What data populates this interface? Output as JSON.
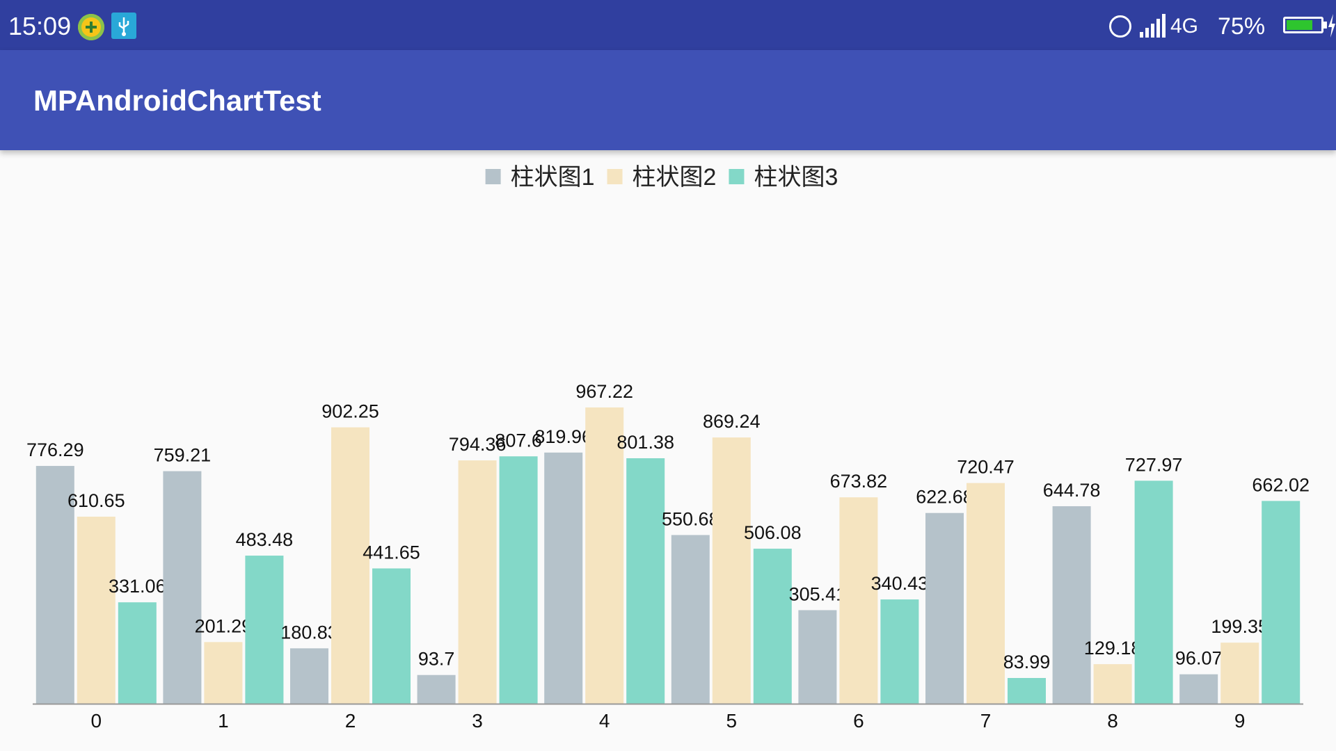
{
  "status_bar": {
    "time": "15:09",
    "network": "4G",
    "battery": "75%",
    "battery_level": 0.75,
    "icons": [
      "plus-icon",
      "usb-icon",
      "alarm-icon",
      "signal-icon",
      "battery-icon",
      "charging-icon"
    ]
  },
  "app_bar": {
    "title": "MPAndroidChartTest"
  },
  "colors": {
    "status_bar": "#303f9f",
    "app_bar": "#3f51b5",
    "background": "#fafafa"
  },
  "chart_data": {
    "type": "bar",
    "categories": [
      "0",
      "1",
      "2",
      "3",
      "4",
      "5",
      "6",
      "7",
      "8",
      "9"
    ],
    "legend_position": "top-center",
    "grid": false,
    "ylim": [
      0,
      1000
    ],
    "series": [
      {
        "name": "柱状图1",
        "color": "#b5c2ca",
        "values": [
          776.29,
          759.21,
          180.83,
          93.7,
          819.96,
          550.68,
          305.41,
          622.68,
          644.78,
          96.07
        ]
      },
      {
        "name": "柱状图2",
        "color": "#f5e4c0",
        "values": [
          610.65,
          201.29,
          902.25,
          794.36,
          967.22,
          869.24,
          673.82,
          720.47,
          129.18,
          199.35
        ]
      },
      {
        "name": "柱状图3",
        "color": "#83d8c8",
        "values": [
          331.06,
          483.48,
          441.65,
          807.6,
          801.38,
          506.08,
          340.43,
          83.99,
          727.97,
          662.02
        ]
      }
    ]
  }
}
